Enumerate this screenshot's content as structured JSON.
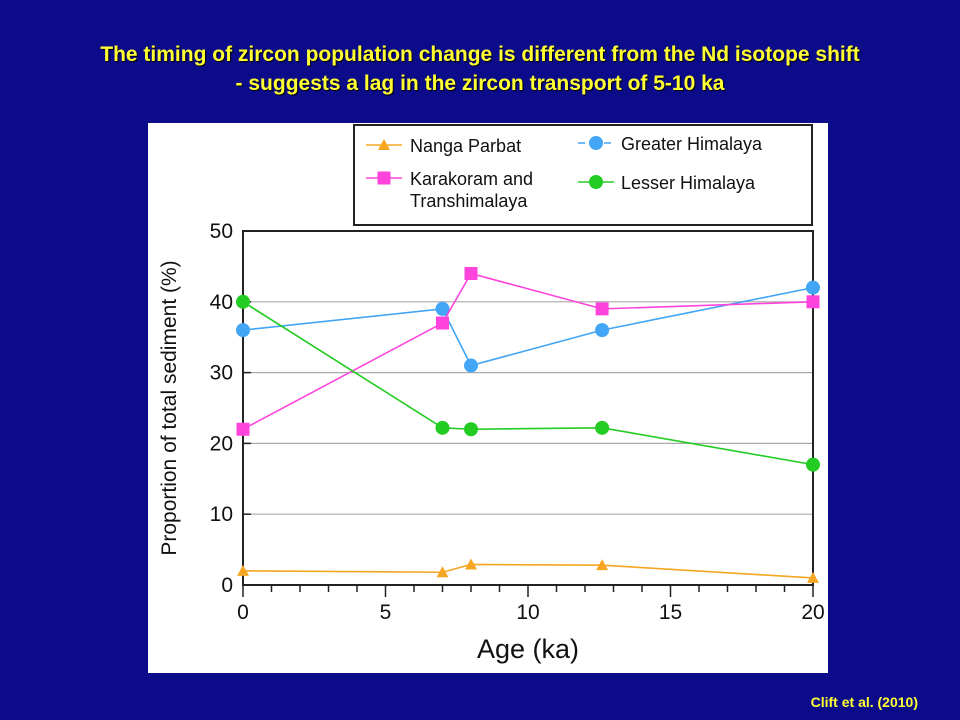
{
  "slide": {
    "title_line1": "The timing of zircon population change is different from the Nd isotope shift",
    "title_line2": "- suggests a lag in the zircon transport of 5-10 ka",
    "citation": "Clift et al. (2010)",
    "background_color": "#0c0c8a",
    "title_color": "#ffff33"
  },
  "chart_data": {
    "type": "line",
    "title": "",
    "xlabel": "Age (ka)",
    "ylabel": "Proportion of total sediment (%)",
    "xlim": [
      0,
      20
    ],
    "ylim": [
      0,
      50
    ],
    "x_ticks": [
      "0",
      "5",
      "10",
      "15",
      "20"
    ],
    "y_ticks": [
      "0",
      "10",
      "20",
      "30",
      "40",
      "50"
    ],
    "grid": "horizontal",
    "legend_position": "top",
    "series": [
      {
        "name": "Nanga Parbat",
        "color": "#f5a623",
        "marker": "triangle",
        "x": [
          0,
          7,
          8,
          12.6,
          20
        ],
        "y": [
          2,
          1.8,
          2.9,
          2.8,
          1
        ]
      },
      {
        "name": "Greater Himalaya",
        "color": "#42a5f5",
        "marker": "circle",
        "x": [
          0,
          7,
          8,
          12.6,
          20
        ],
        "y": [
          36,
          39,
          31,
          36,
          42
        ]
      },
      {
        "name": "Karakoram and Transhimalaya",
        "legend_lines": [
          "Karakoram and",
          "Transhimalaya"
        ],
        "color": "#ff44dd",
        "marker": "square",
        "x": [
          0,
          7,
          8,
          12.6,
          20
        ],
        "y": [
          22,
          37,
          44,
          39,
          40
        ]
      },
      {
        "name": "Lesser Himalaya",
        "color": "#22cc22",
        "marker": "circle",
        "x": [
          0,
          7,
          8,
          12.6,
          20
        ],
        "y": [
          40,
          22.2,
          22,
          22.2,
          17
        ]
      }
    ]
  }
}
